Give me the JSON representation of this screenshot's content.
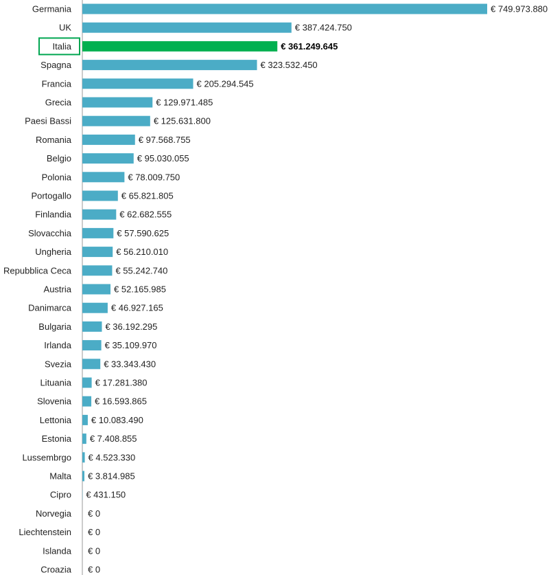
{
  "chart_data": {
    "type": "bar",
    "orientation": "horizontal",
    "categories": [
      "Germania",
      "UK",
      "Italia",
      "Spagna",
      "Francia",
      "Grecia",
      "Paesi Bassi",
      "Romania",
      "Belgio",
      "Polonia",
      "Portogallo",
      "Finlandia",
      "Slovacchia",
      "Ungheria",
      "Repubblica Ceca",
      "Austria",
      "Danimarca",
      "Bulgaria",
      "Irlanda",
      "Svezia",
      "Lituania",
      "Slovenia",
      "Lettonia",
      "Estonia",
      "Lussembrgo",
      "Malta",
      "Cipro",
      "Norvegia",
      "Liechtenstein",
      "Islanda",
      "Croazia"
    ],
    "values": [
      749973880,
      387424750,
      361249645,
      323532450,
      205294545,
      129971485,
      125631800,
      97568755,
      95030055,
      78009750,
      65821805,
      62682555,
      57590625,
      56210010,
      55242740,
      52165985,
      46927165,
      36192295,
      35109970,
      33343430,
      17281380,
      16593865,
      10083490,
      7408855,
      4523330,
      3814985,
      431150,
      0,
      0,
      0,
      0
    ],
    "value_labels": [
      "€ 749.973.880",
      "€ 387.424.750",
      "€ 361.249.645",
      "€ 323.532.450",
      "€ 205.294.545",
      "€ 129.971.485",
      "€ 125.631.800",
      "€ 97.568.755",
      "€ 95.030.055",
      "€ 78.009.750",
      "€ 65.821.805",
      "€ 62.682.555",
      "€ 57.590.625",
      "€ 56.210.010",
      "€ 55.242.740",
      "€ 52.165.985",
      "€ 46.927.165",
      "€ 36.192.295",
      "€ 35.109.970",
      "€ 33.343.430",
      "€ 17.281.380",
      "€ 16.593.865",
      "€ 10.083.490",
      "€ 7.408.855",
      "€ 4.523.330",
      "€ 3.814.985",
      "€ 431.150",
      "€ 0",
      "€ 0",
      "€ 0",
      "€ 0"
    ],
    "highlight": "Italia",
    "xlim": [
      0,
      749973880
    ],
    "grid": false,
    "legend": "none",
    "colors": {
      "bar": "#4bacc6",
      "highlight_bar": "#00b050",
      "highlight_box": "#00a651",
      "axis": "#999999"
    }
  }
}
